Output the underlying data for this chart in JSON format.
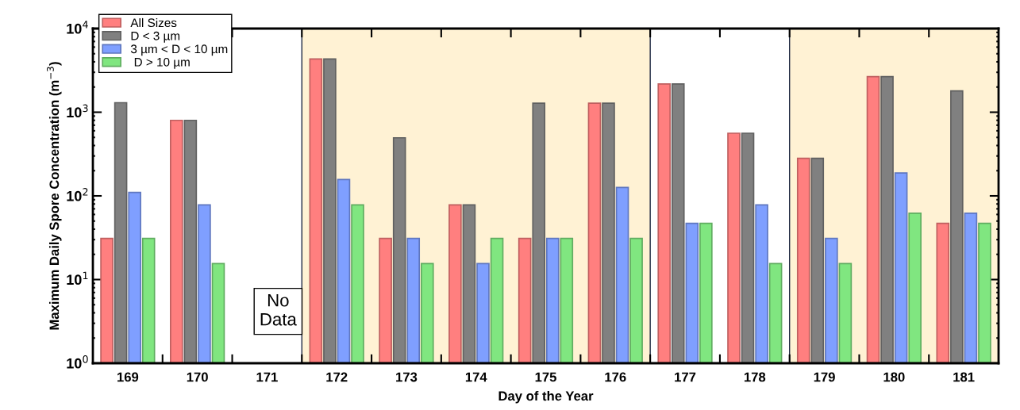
{
  "chart_data": {
    "type": "bar",
    "xlabel": "Day of the Year",
    "ylabel": "Maximum Daily Spore Concentration (m$^{−3}$)",
    "x": [
      169,
      170,
      171,
      172,
      173,
      174,
      175,
      176,
      177,
      178,
      179,
      180,
      181
    ],
    "xlim": [
      168.5,
      181.5
    ],
    "xticks": [
      169,
      170,
      171,
      172,
      173,
      174,
      175,
      176,
      177,
      178,
      179,
      180,
      181
    ],
    "log": true,
    "ylim": [
      1,
      10000
    ],
    "yticks": [
      {
        "value": 1,
        "label": "10$^{0}$"
      },
      {
        "value": 10,
        "label": "10$^{1}$"
      },
      {
        "value": 100,
        "label": "10$^{2}$"
      },
      {
        "value": 1000,
        "label": "10$^{3}$"
      },
      {
        "value": 10000,
        "label": "10$^{4}$"
      }
    ],
    "series": [
      {
        "name": "All Sizes",
        "color": "#ff7f7f",
        "values": [
          31,
          800,
          null,
          4330,
          31,
          78,
          31,
          1280,
          2180,
          561,
          281,
          2660,
          47
        ]
      },
      {
        "name": "D < 3 µm",
        "color": "#808080",
        "values": [
          1300,
          800,
          null,
          4330,
          495,
          78,
          1280,
          1280,
          2180,
          561,
          281,
          2660,
          1800
        ]
      },
      {
        "name": "3 µm < D < 10 µm",
        "color": "#7f9fff",
        "values": [
          110,
          78,
          null,
          157,
          31,
          15.5,
          31,
          126,
          47,
          78,
          31,
          188,
          62
        ]
      },
      {
        "name": " D > 10 µm",
        "color": "#80e680",
        "values": [
          31,
          15.5,
          null,
          78,
          15.5,
          31,
          31,
          31,
          47,
          15.5,
          15.5,
          62,
          47
        ]
      }
    ],
    "bands": [
      {
        "axis": "x",
        "from": 171.5,
        "to": 176.5,
        "color": "#fff2d4"
      },
      {
        "axis": "x",
        "from": 178.5,
        "to": 181.5,
        "color": "#fff2d4"
      }
    ],
    "annotations": [
      "No\nData"
    ],
    "legend": "top left",
    "grid": false
  }
}
